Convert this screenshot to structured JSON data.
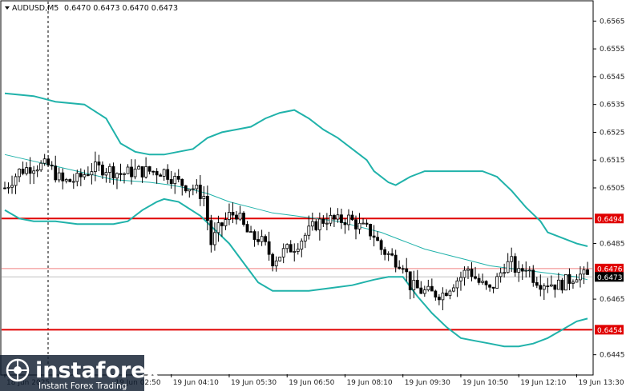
{
  "header": {
    "symbol": "AUDUSD,M5",
    "quotes": "0.6470 0.6473 0.6470 0.6473"
  },
  "watermark": {
    "brand": "instaforex",
    "tagline": "Instant Forex Trading"
  },
  "colors": {
    "background": "#ffffff",
    "candle": "#000000",
    "bollinger": "#20b2aa",
    "ma": "#20b2aa",
    "level_line": "#e00000",
    "level_tag": "#e00000",
    "bid_line": "#c0c0c0",
    "ask_line": "#f08080",
    "last_tag": "#000000"
  },
  "chart_data": {
    "type": "candlestick",
    "ylim": [
      0.6438,
      0.6572
    ],
    "y_ticks": [
      "0.6565",
      "0.6555",
      "0.6545",
      "0.6535",
      "0.6525",
      "0.6515",
      "0.6505",
      "0.6485",
      "0.6465",
      "0.6445"
    ],
    "x_ticks": [
      "18 Jun 2025",
      "19 Jun 02:50",
      "19 Jun 04:10",
      "19 Jun 05:30",
      "19 Jun 06:50",
      "19 Jun 08:10",
      "19 Jun 09:30",
      "19 Jun 10:50",
      "19 Jun 12:10",
      "19 Jun 13:30"
    ],
    "x_tick_positions": [
      0,
      30,
      46,
      62,
      78,
      94,
      110,
      126,
      142,
      158
    ],
    "bar_count": 162,
    "levels": [
      {
        "label": "0.6494",
        "value": 0.6494
      },
      {
        "label": "0.6454",
        "value": 0.6454
      }
    ],
    "ask": {
      "label": "0.6476",
      "value": 0.6476
    },
    "last": {
      "label": "0.6473",
      "value": 0.6473
    },
    "close_path": [
      [
        0,
        0.6505
      ],
      [
        4,
        0.6511
      ],
      [
        8,
        0.6513
      ],
      [
        12,
        0.6513
      ],
      [
        16,
        0.6507
      ],
      [
        20,
        0.6508
      ],
      [
        24,
        0.6512
      ],
      [
        28,
        0.6512
      ],
      [
        32,
        0.651
      ],
      [
        36,
        0.6511
      ],
      [
        40,
        0.6511
      ],
      [
        44,
        0.6511
      ],
      [
        48,
        0.6507
      ],
      [
        52,
        0.6505
      ],
      [
        55,
        0.6502
      ],
      [
        57,
        0.6485
      ],
      [
        59,
        0.649
      ],
      [
        62,
        0.6495
      ],
      [
        64,
        0.6496
      ],
      [
        66,
        0.6491
      ],
      [
        68,
        0.6487
      ],
      [
        70,
        0.6487
      ],
      [
        72,
        0.6484
      ],
      [
        74,
        0.6479
      ],
      [
        77,
        0.6482
      ],
      [
        80,
        0.6484
      ],
      [
        83,
        0.6488
      ],
      [
        86,
        0.6492
      ],
      [
        89,
        0.6494
      ],
      [
        92,
        0.6493
      ],
      [
        95,
        0.6494
      ],
      [
        98,
        0.6491
      ],
      [
        100,
        0.649
      ],
      [
        102,
        0.6488
      ],
      [
        104,
        0.6483
      ],
      [
        106,
        0.6481
      ],
      [
        108,
        0.6479
      ],
      [
        110,
        0.6478
      ],
      [
        112,
        0.647
      ],
      [
        115,
        0.6468
      ],
      [
        118,
        0.6467
      ],
      [
        121,
        0.6467
      ],
      [
        124,
        0.6471
      ],
      [
        126,
        0.6473
      ],
      [
        128,
        0.6476
      ],
      [
        131,
        0.6471
      ],
      [
        134,
        0.6468
      ],
      [
        136,
        0.6472
      ],
      [
        138,
        0.6477
      ],
      [
        140,
        0.6478
      ],
      [
        142,
        0.6474
      ],
      [
        144,
        0.6477
      ],
      [
        146,
        0.6473
      ],
      [
        148,
        0.6471
      ],
      [
        150,
        0.6471
      ],
      [
        153,
        0.647
      ],
      [
        156,
        0.6472
      ],
      [
        158,
        0.6474
      ],
      [
        161,
        0.6473
      ]
    ],
    "bb_upper": [
      [
        0,
        0.6539
      ],
      [
        8,
        0.6538
      ],
      [
        14,
        0.6536
      ],
      [
        22,
        0.6535
      ],
      [
        28,
        0.653
      ],
      [
        32,
        0.6521
      ],
      [
        36,
        0.6518
      ],
      [
        40,
        0.6517
      ],
      [
        44,
        0.6517
      ],
      [
        48,
        0.6518
      ],
      [
        52,
        0.6519
      ],
      [
        56,
        0.6523
      ],
      [
        60,
        0.6525
      ],
      [
        64,
        0.6526
      ],
      [
        68,
        0.6527
      ],
      [
        72,
        0.653
      ],
      [
        76,
        0.6532
      ],
      [
        80,
        0.6533
      ],
      [
        84,
        0.653
      ],
      [
        88,
        0.6526
      ],
      [
        92,
        0.6523
      ],
      [
        96,
        0.6519
      ],
      [
        100,
        0.6515
      ],
      [
        102,
        0.6511
      ],
      [
        106,
        0.6507
      ],
      [
        108,
        0.6506
      ],
      [
        112,
        0.6509
      ],
      [
        116,
        0.6511
      ],
      [
        122,
        0.6511
      ],
      [
        128,
        0.6511
      ],
      [
        132,
        0.6511
      ],
      [
        136,
        0.6509
      ],
      [
        140,
        0.6504
      ],
      [
        144,
        0.6498
      ],
      [
        148,
        0.6493
      ],
      [
        150,
        0.6489
      ],
      [
        154,
        0.6487
      ],
      [
        158,
        0.6485
      ],
      [
        161,
        0.6484
      ]
    ],
    "bb_lower": [
      [
        0,
        0.6497
      ],
      [
        4,
        0.6494
      ],
      [
        8,
        0.6493
      ],
      [
        14,
        0.6493
      ],
      [
        20,
        0.6492
      ],
      [
        26,
        0.6492
      ],
      [
        30,
        0.6492
      ],
      [
        34,
        0.6493
      ],
      [
        38,
        0.6497
      ],
      [
        42,
        0.65
      ],
      [
        44,
        0.6501
      ],
      [
        48,
        0.65
      ],
      [
        54,
        0.6495
      ],
      [
        58,
        0.649
      ],
      [
        62,
        0.6485
      ],
      [
        66,
        0.6478
      ],
      [
        70,
        0.6471
      ],
      [
        74,
        0.6468
      ],
      [
        78,
        0.6468
      ],
      [
        84,
        0.6468
      ],
      [
        90,
        0.6469
      ],
      [
        96,
        0.647
      ],
      [
        102,
        0.6472
      ],
      [
        106,
        0.6473
      ],
      [
        110,
        0.6473
      ],
      [
        114,
        0.6466
      ],
      [
        118,
        0.646
      ],
      [
        122,
        0.6455
      ],
      [
        126,
        0.6451
      ],
      [
        130,
        0.645
      ],
      [
        134,
        0.6449
      ],
      [
        138,
        0.6448
      ],
      [
        142,
        0.6448
      ],
      [
        146,
        0.6449
      ],
      [
        150,
        0.6451
      ],
      [
        154,
        0.6454
      ],
      [
        158,
        0.6457
      ],
      [
        161,
        0.6458
      ]
    ],
    "ma_line": [
      [
        0,
        0.6517
      ],
      [
        10,
        0.6514
      ],
      [
        20,
        0.6511
      ],
      [
        30,
        0.6508
      ],
      [
        40,
        0.6507
      ],
      [
        46,
        0.6506
      ],
      [
        50,
        0.6505
      ],
      [
        56,
        0.6503
      ],
      [
        62,
        0.65
      ],
      [
        68,
        0.6498
      ],
      [
        74,
        0.6496
      ],
      [
        80,
        0.6495
      ],
      [
        86,
        0.6494
      ],
      [
        92,
        0.6493
      ],
      [
        98,
        0.6491
      ],
      [
        104,
        0.6489
      ],
      [
        110,
        0.6486
      ],
      [
        116,
        0.6483
      ],
      [
        122,
        0.6481
      ],
      [
        128,
        0.6479
      ],
      [
        134,
        0.6477
      ],
      [
        140,
        0.6476
      ],
      [
        146,
        0.6475
      ],
      [
        152,
        0.6474
      ],
      [
        158,
        0.6473
      ],
      [
        161,
        0.6472
      ]
    ]
  }
}
